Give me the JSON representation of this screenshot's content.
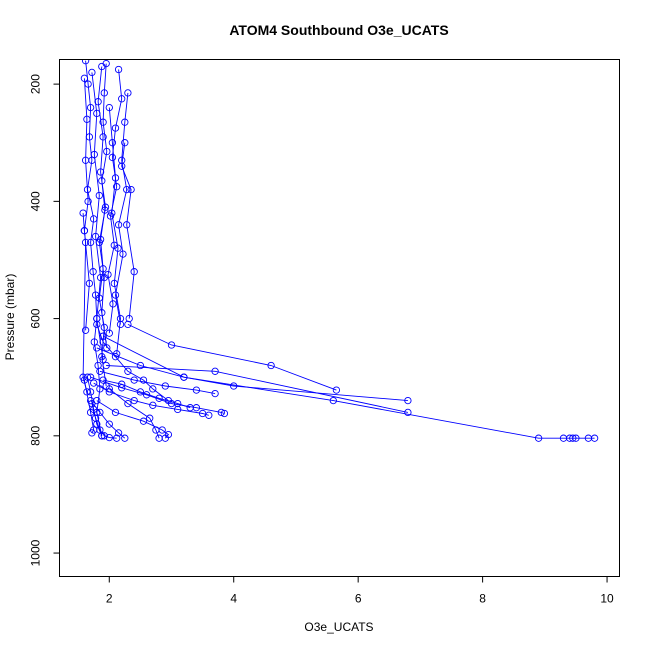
{
  "chart_data": {
    "type": "line",
    "title": "ATOM4 Southbound O3e_UCATS",
    "xlabel": "O3e_UCATS",
    "ylabel": "Pressure (mbar)",
    "xlim": [
      1.2,
      10.2
    ],
    "ylim": [
      1040,
      158
    ],
    "y_reversed": true,
    "grid": false,
    "legend": "none",
    "x_ticks": [
      2,
      4,
      6,
      8,
      10
    ],
    "y_ticks": [
      200,
      400,
      600,
      800,
      1000
    ],
    "series_color": "#0000ff",
    "marker": "open-circle",
    "series": [
      {
        "x": [
          1.62,
          1.66,
          1.7,
          1.68,
          1.72,
          1.65,
          1.75,
          1.7,
          1.74,
          1.78,
          1.8,
          1.76,
          1.82,
          1.85,
          1.8,
          1.88
        ],
        "y": [
          160,
          200,
          240,
          290,
          330,
          380,
          430,
          470,
          520,
          560,
          600,
          640,
          680,
          720,
          760,
          800
        ]
      },
      {
        "x": [
          1.95,
          1.92,
          1.9,
          1.96,
          1.88,
          1.93,
          1.86,
          1.9,
          1.84,
          1.92,
          1.88,
          1.95
        ],
        "y": [
          165,
          215,
          265,
          315,
          365,
          415,
          465,
          515,
          565,
          615,
          665,
          715
        ]
      },
      {
        "x": [
          2.15,
          2.2,
          2.1,
          2.05,
          2.12,
          2.02,
          2.08,
          1.98,
          2.06,
          2.0
        ],
        "y": [
          175,
          225,
          275,
          325,
          375,
          425,
          475,
          525,
          575,
          625
        ]
      },
      {
        "x": [
          1.72,
          1.8,
          1.76,
          1.84,
          1.78,
          1.86,
          1.8,
          1.9
        ],
        "y": [
          180,
          250,
          320,
          390,
          460,
          530,
          600,
          670
        ]
      },
      {
        "x": [
          2.3,
          2.25,
          2.2,
          2.28,
          2.15,
          2.22,
          2.1,
          2.18
        ],
        "y": [
          215,
          265,
          330,
          380,
          440,
          490,
          560,
          610
        ]
      },
      {
        "x": [
          1.6,
          1.64,
          1.62,
          1.66,
          1.6,
          1.68,
          1.62
        ],
        "y": [
          190,
          260,
          330,
          400,
          450,
          540,
          620
        ]
      },
      {
        "x": [
          1.88,
          1.82,
          1.9,
          1.86,
          1.94,
          1.84,
          1.92,
          1.88,
          1.96
        ],
        "y": [
          170,
          230,
          290,
          350,
          410,
          470,
          530,
          590,
          650
        ]
      },
      {
        "x": [
          2.0,
          2.05,
          2.1,
          2.04,
          2.14,
          2.08,
          2.18,
          2.12
        ],
        "y": [
          240,
          300,
          360,
          420,
          480,
          540,
          600,
          660
        ]
      },
      {
        "x": [
          1.58,
          1.6,
          1.62,
          1.58,
          1.64
        ],
        "y": [
          420,
          450,
          470,
          700,
          725
        ]
      },
      {
        "x": [
          2.25,
          2.2,
          2.35,
          2.28,
          2.4,
          2.32
        ],
        "y": [
          300,
          340,
          380,
          440,
          520,
          600
        ]
      },
      {
        "x": [
          1.8,
          1.9,
          2.1,
          2.3,
          2.55,
          2.7,
          2.95
        ],
        "y": [
          610,
          640,
          665,
          690,
          705,
          720,
          740
        ]
      },
      {
        "x": [
          2.3,
          3.0,
          4.6,
          5.65
        ],
        "y": [
          610,
          645,
          680,
          722
        ]
      },
      {
        "x": [
          1.95,
          3.7,
          6.8
        ],
        "y": [
          680,
          690,
          760
        ]
      },
      {
        "x": [
          1.8,
          2.5,
          3.2,
          4.0,
          6.8
        ],
        "y": [
          650,
          680,
          700,
          715,
          740
        ]
      },
      {
        "x": [
          1.9,
          3.2,
          5.6,
          8.9,
          9.3,
          9.4,
          9.45,
          9.5,
          9.7,
          9.8
        ],
        "y": [
          630,
          700,
          740,
          804,
          804,
          804,
          804,
          804,
          804,
          804
        ]
      },
      {
        "x": [
          1.7,
          2.2,
          2.6,
          3.0,
          3.4,
          3.8,
          3.85
        ],
        "y": [
          700,
          718,
          730,
          745,
          752,
          760,
          762
        ]
      },
      {
        "x": [
          1.75,
          2.0,
          2.4,
          2.7,
          3.1,
          3.5,
          3.6
        ],
        "y": [
          710,
          725,
          740,
          748,
          755,
          762,
          765
        ]
      },
      {
        "x": [
          1.8,
          2.1,
          2.55,
          2.85,
          2.95,
          2.9
        ],
        "y": [
          740,
          760,
          775,
          790,
          798,
          804
        ]
      },
      {
        "x": [
          1.7,
          1.85,
          2.0,
          2.15,
          2.25
        ],
        "y": [
          740,
          760,
          780,
          795,
          804
        ]
      },
      {
        "x": [
          1.72,
          1.78,
          1.85,
          1.92,
          2.0,
          2.12
        ],
        "y": [
          745,
          770,
          790,
          800,
          803,
          804
        ]
      },
      {
        "x": [
          1.65,
          1.7,
          1.75,
          1.8,
          1.88
        ],
        "y": [
          700,
          725,
          755,
          780,
          800
        ]
      },
      {
        "x": [
          2.0,
          2.3,
          2.65,
          2.75,
          2.8
        ],
        "y": [
          720,
          745,
          770,
          790,
          804
        ]
      },
      {
        "x": [
          1.85,
          2.4,
          2.9,
          3.4,
          3.7
        ],
        "y": [
          690,
          705,
          715,
          722,
          728
        ]
      },
      {
        "x": [
          1.9,
          2.2,
          2.5,
          2.8,
          3.1,
          3.3
        ],
        "y": [
          705,
          712,
          725,
          736,
          745,
          752
        ]
      },
      {
        "x": [
          1.6,
          1.7,
          1.75,
          1.72
        ],
        "y": [
          705,
          760,
          790,
          795
        ]
      }
    ]
  }
}
